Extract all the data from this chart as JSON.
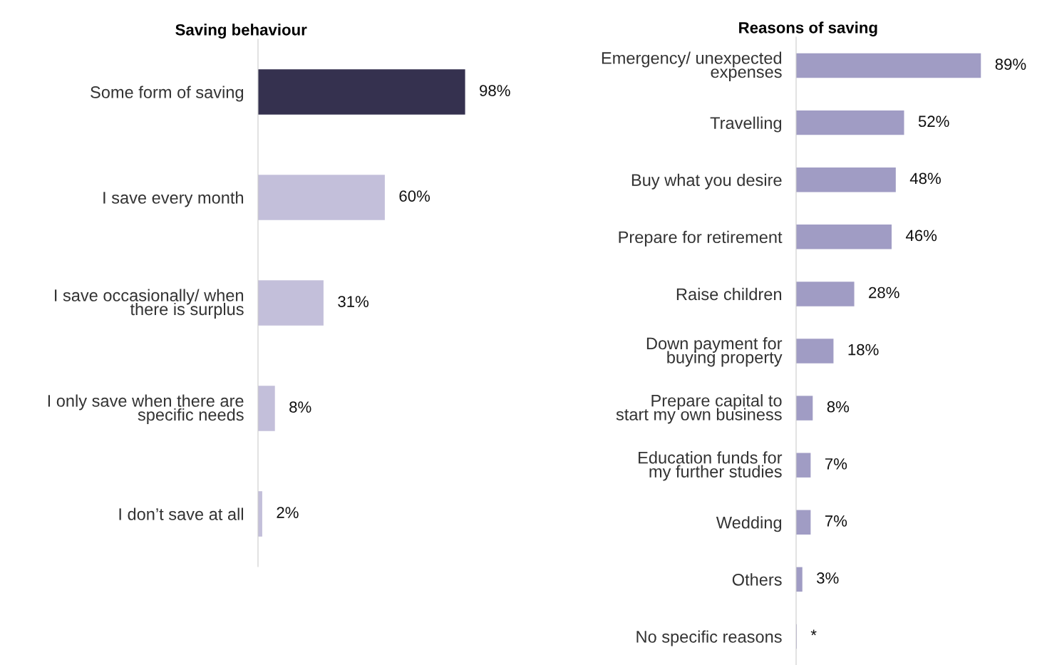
{
  "chart_data": [
    {
      "type": "bar",
      "orientation": "horizontal",
      "title": "Saving behaviour",
      "categories": [
        "Some form of saving",
        "I save every month",
        "I save occasionally/ when\nthere is surplus",
        "I only save when there are\nspecific needs",
        "I don’t save at all"
      ],
      "values": [
        98,
        60,
        31,
        8,
        2
      ],
      "colors": [
        "#35314f",
        "#c3bfda",
        "#c3bfda",
        "#c3bfda",
        "#c3bfda"
      ],
      "value_labels": [
        "98%",
        "60%",
        "31%",
        "8%",
        "2%"
      ],
      "grid": false,
      "legend": false
    },
    {
      "type": "bar",
      "orientation": "horizontal",
      "title": "Reasons of saving",
      "categories": [
        "Emergency/ unexpected\nexpenses",
        "Travelling",
        "Buy what you desire",
        "Prepare for retirement",
        "Raise children",
        "Down payment for\nbuying property",
        "Prepare capital to\nstart my own business",
        "Education funds for\nmy further studies",
        "Wedding",
        "Others",
        "No specific reasons"
      ],
      "values": [
        89,
        52,
        48,
        46,
        28,
        18,
        8,
        7,
        7,
        3,
        0.3
      ],
      "color": "#a09cc4",
      "value_labels": [
        "89%",
        "52%",
        "48%",
        "46%",
        "28%",
        "18%",
        "8%",
        "7%",
        "7%",
        "3%",
        "*"
      ],
      "grid": false,
      "legend": false
    }
  ]
}
